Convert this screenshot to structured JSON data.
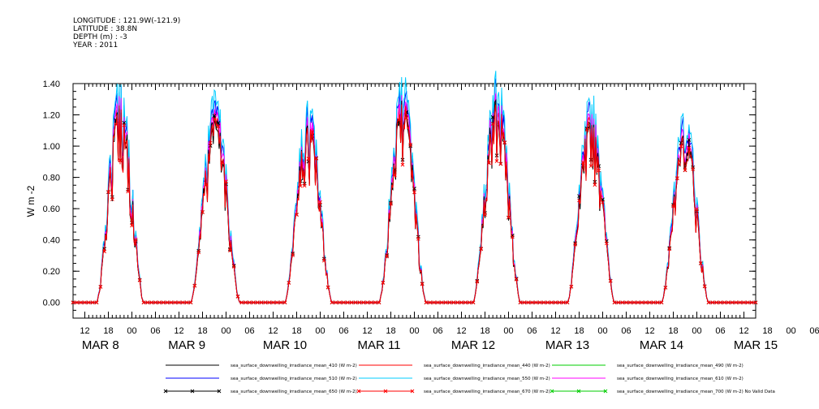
{
  "header": {
    "longitude": "LONGITUDE : 121.9W(-121.9)",
    "latitude": "LATITUDE : 38.8N",
    "depth": "DEPTH (m) : -3",
    "year": "YEAR : 2011"
  },
  "chart_data": {
    "type": "line",
    "title": "",
    "xlabel": "",
    "ylabel": "W m-2",
    "ylim": [
      -0.1,
      1.4
    ],
    "yticks": [
      0.0,
      0.2,
      0.4,
      0.6,
      0.8,
      1.0,
      1.2,
      1.4
    ],
    "ytick_labels": [
      "0.00",
      "0.20",
      "0.40",
      "0.60",
      "0.80",
      "1.00",
      "1.20",
      "1.40"
    ],
    "xlim_hours": [
      -3,
      171
    ],
    "hour_tick_labels": [
      "12",
      "18",
      "00",
      "06",
      "12",
      "18",
      "00",
      "06",
      "12",
      "18",
      "00",
      "06",
      "12",
      "18",
      "00",
      "06",
      "12",
      "18",
      "00",
      "06",
      "12",
      "18",
      "00",
      "06",
      "12",
      "18",
      "00",
      "06",
      "12",
      "18",
      "00",
      "06",
      "12"
    ],
    "day_labels": [
      {
        "label": "MAR  8",
        "hour": 4
      },
      {
        "label": "MAR  9",
        "hour": 26
      },
      {
        "label": "MAR 10",
        "hour": 51
      },
      {
        "label": "MAR 11",
        "hour": 75
      },
      {
        "label": "MAR 12",
        "hour": 99
      },
      {
        "label": "MAR 13",
        "hour": 123
      },
      {
        "label": "MAR 14",
        "hour": 147
      },
      {
        "label": "MAR 15",
        "hour": 171
      }
    ],
    "series": [
      {
        "name": "sea_surface_downwelling_irradiance_mean_410 (W m-2)",
        "color": "#000000",
        "scale": 0.95
      },
      {
        "name": "sea_surface_downwelling_irradiance_mean_440 (W m-2)",
        "color": "#ff0000",
        "scale": 0.98
      },
      {
        "name": "sea_surface_downwelling_irradiance_mean_490 (W m-2)",
        "color": "#00cc00",
        "scale": 0.0,
        "no_data": true
      },
      {
        "name": "sea_surface_downwelling_irradiance_mean_510 (W m-2)",
        "color": "#0000ff",
        "scale": 1.06
      },
      {
        "name": "sea_surface_downwelling_irradiance_mean_550 (W m-2)",
        "color": "#00ccff",
        "scale": 1.1
      },
      {
        "name": "sea_surface_downwelling_irradiance_mean_610 (W m-2)",
        "color": "#ff00ff",
        "scale": 1.01
      },
      {
        "name": "sea_surface_downwelling_irradiance_mean_650 (W m-2)",
        "color": "#000000",
        "scale": 0.97,
        "marker": "x"
      },
      {
        "name": "sea_surface_downwelling_irradiance_mean_670 (W m-2)",
        "color": "#ff0000",
        "scale": 0.96,
        "marker": "x"
      },
      {
        "name": "sea_surface_downwelling_irradiance_mean_700 (W m-2) No Valid Data",
        "color": "#00cc00",
        "scale": 0.0,
        "marker": "x",
        "no_data": true
      }
    ],
    "daily_cycles": [
      {
        "day": "MAR 8",
        "sunrise_hour": 3,
        "sunset_hour": 15,
        "peak": 1.3
      },
      {
        "day": "MAR 9",
        "sunrise_hour": 27,
        "sunset_hour": 39.5,
        "peak": 1.22
      },
      {
        "day": "MAR 10",
        "sunrise_hour": 51,
        "sunset_hour": 63,
        "peak": 1.18
      },
      {
        "day": "MAR 11",
        "sunrise_hour": 75,
        "sunset_hour": 87,
        "peak": 1.32
      },
      {
        "day": "MAR 12",
        "sunrise_hour": 99,
        "sunset_hour": 111,
        "peak": 1.35
      },
      {
        "day": "MAR 13",
        "sunrise_hour": 123,
        "sunset_hour": 135,
        "peak": 1.22
      },
      {
        "day": "MAR 14",
        "sunrise_hour": 147,
        "sunset_hour": 159,
        "peak": 1.12
      }
    ],
    "grid": false,
    "legend": "bottom"
  }
}
